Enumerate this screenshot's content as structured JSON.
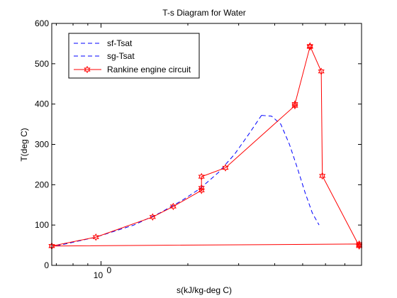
{
  "chart_data": {
    "type": "line",
    "title": "T-s Diagram for Water",
    "xlabel": "s(kJ/kg-deg C)",
    "ylabel": "T(deg C)",
    "xscale": "log",
    "xlim": [
      0.675,
      8.0
    ],
    "ylim": [
      0,
      600
    ],
    "y_ticks": [
      0,
      100,
      200,
      300,
      400,
      500,
      600
    ],
    "x_ticks": [
      1
    ],
    "x_tick_labels": [
      {
        "base": "10",
        "exp": "0"
      }
    ],
    "grid": false,
    "legend_position": "top-left",
    "series": [
      {
        "name": "sf-Tsat",
        "color": "#0000ff",
        "style": "dashed",
        "x": [
          0.7,
          0.96,
          1.3,
          1.6,
          1.9,
          2.2,
          2.55,
          2.9,
          3.25,
          3.6
        ],
        "y": [
          48,
          70,
          100,
          130,
          160,
          190,
          230,
          275,
          325,
          372
        ]
      },
      {
        "name": "sg-Tsat",
        "color": "#0000ff",
        "style": "dashed",
        "x": [
          3.6,
          3.9,
          4.2,
          4.5,
          4.8,
          5.1,
          5.4,
          5.7
        ],
        "y": [
          372,
          370,
          350,
          300,
          240,
          180,
          130,
          100
        ]
      },
      {
        "name": "Rankine engine circuit",
        "color": "#ff0000",
        "style": "solid",
        "marker": "hexagram",
        "x": [
          0.675,
          0.96,
          1.51,
          1.78,
          2.23,
          2.23,
          2.23,
          2.7,
          4.7,
          4.7,
          5.3,
          5.3,
          5.8,
          5.85,
          7.85,
          7.85,
          7.85,
          0.675
        ],
        "y": [
          48,
          70,
          120,
          146,
          186,
          192,
          220,
          242,
          396,
          400,
          542,
          544,
          481,
          222,
          48,
          50,
          53,
          48
        ]
      }
    ]
  }
}
